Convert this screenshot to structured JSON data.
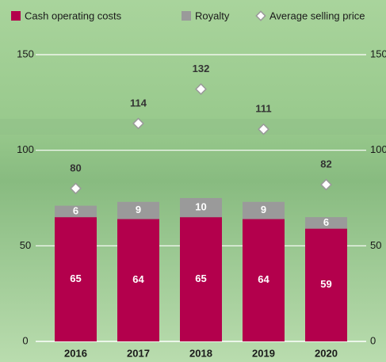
{
  "chart_data": {
    "type": "bar",
    "stacked": true,
    "categories": [
      "2016",
      "2017",
      "2018",
      "2019",
      "2020"
    ],
    "series": [
      {
        "name": "Cash operating costs",
        "color": "#b3004c",
        "values": [
          65,
          64,
          65,
          64,
          59
        ]
      },
      {
        "name": "Royalty",
        "color": "#9a9a9a",
        "values": [
          6,
          9,
          10,
          9,
          6
        ]
      },
      {
        "name": "Average selling price",
        "type": "scatter",
        "color": "#ffffff",
        "values": [
          80,
          114,
          132,
          111,
          82
        ]
      }
    ],
    "ylim": [
      0,
      150
    ],
    "yticks": [
      0,
      50,
      100,
      150
    ],
    "y2lim": [
      0,
      150
    ],
    "y2ticks": [
      0,
      50,
      100,
      150
    ],
    "grid": true
  }
}
